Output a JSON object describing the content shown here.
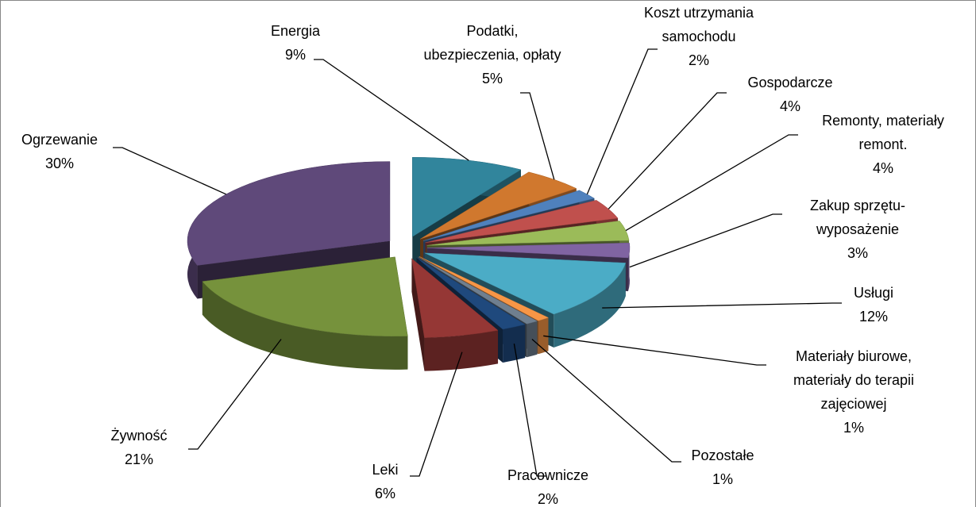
{
  "chart_data": {
    "type": "pie3d",
    "categories": [
      "Energia",
      "Podatki,\nubezpieczenia, opłaty",
      "Koszt utrzymania\nsamochodu",
      "Gospodarcze",
      "Remonty, materiały\nremont.",
      "Zakup sprzętu-\nwyposażenie",
      "Usługi",
      "Materiały biurowe,\nmateriały do terapii\nzajęciowej",
      "Pozostałe",
      "Pracownicze",
      "Leki",
      "Żywność",
      "Ogrzewanie"
    ],
    "values": [
      9,
      5,
      2,
      4,
      4,
      3,
      12,
      1,
      1,
      2,
      6,
      21,
      30
    ],
    "value_labels": [
      "9%",
      "5%",
      "2%",
      "4%",
      "4%",
      "3%",
      "12%",
      "1%",
      "1%",
      "2%",
      "6%",
      "21%",
      "30%"
    ],
    "colors": [
      "#31859c",
      "#d0782e",
      "#4f81bd",
      "#c0504d",
      "#9bbb59",
      "#8064a2",
      "#4bacc6",
      "#f79646",
      "#6f7f8f",
      "#1f497d",
      "#953735",
      "#76923c",
      "#5f497a"
    ]
  }
}
